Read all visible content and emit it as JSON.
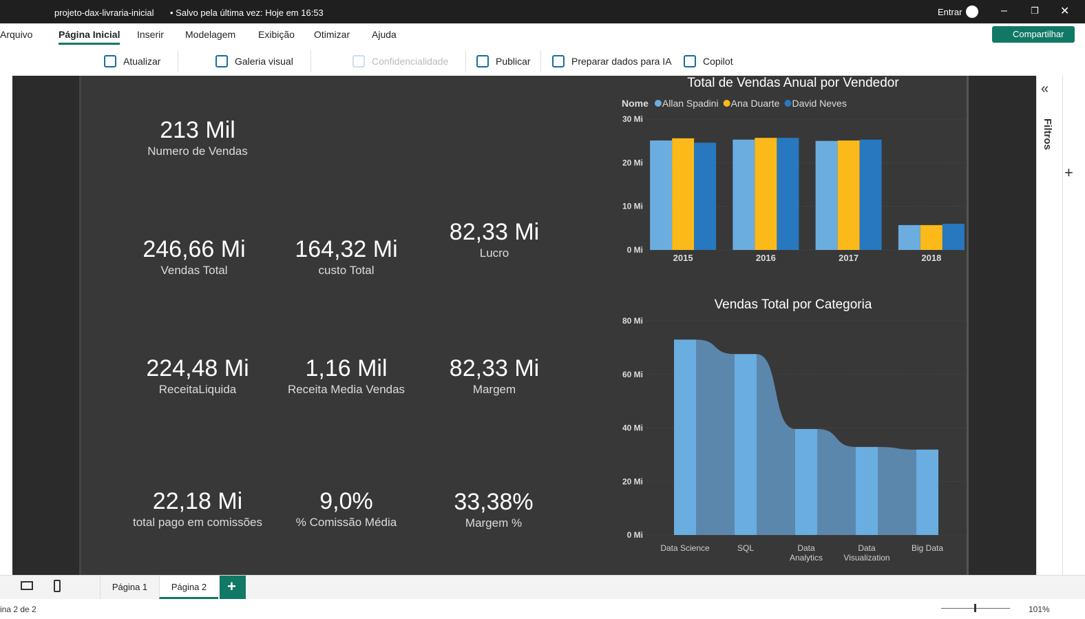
{
  "title_bar": {
    "file": "projeto-dax-livraria-inicial",
    "status": "• Salvo pela última vez: Hoje em 16:53",
    "sign_in": "Entrar"
  },
  "menu": {
    "items": [
      "Arquivo",
      "Página Inicial",
      "Inserir",
      "Modelagem",
      "Exibição",
      "Otimizar",
      "Ajuda"
    ],
    "share": "Compartilhar"
  },
  "ribbon": {
    "items": [
      "Atualizar",
      "Galeria visual",
      "Confidencialidade",
      "Publicar",
      "Preparar dados para IA",
      "Copilot"
    ]
  },
  "cards": [
    {
      "value": "213 Mil",
      "label": "Numero de Vendas"
    },
    {
      "value": "246,66 Mi",
      "label": "Vendas Total"
    },
    {
      "value": "164,32 Mi",
      "label": "custo Total"
    },
    {
      "value": "82,33 Mi",
      "label": "Lucro"
    },
    {
      "value": "224,48 Mi",
      "label": "ReceitaLiquida"
    },
    {
      "value": "1,16 Mil",
      "label": "Receita Media Vendas"
    },
    {
      "value": "82,33 Mi",
      "label": "Margem"
    },
    {
      "value": "22,18 Mi",
      "label": "total pago em comissões"
    },
    {
      "value": "9,0%",
      "label": "% Comissão Média"
    },
    {
      "value": "33,38%",
      "label": "Margem %"
    }
  ],
  "chart_data": [
    {
      "type": "bar",
      "title": "Total de Vendas Anual por Vendedor",
      "legend_title": "Nome",
      "legend": "top-left",
      "categories": [
        "2015",
        "2016",
        "2017",
        "2018"
      ],
      "series": [
        {
          "name": "Allan Spadini",
          "color": "#6cade0",
          "values": [
            25.1,
            25.3,
            25.0,
            5.7
          ]
        },
        {
          "name": "Ana Duarte",
          "color": "#fbb91a",
          "values": [
            25.6,
            25.7,
            25.1,
            5.7
          ]
        },
        {
          "name": "David Neves",
          "color": "#2878c0",
          "values": [
            24.6,
            25.7,
            25.3,
            6.0
          ]
        }
      ],
      "ylim": [
        0,
        30
      ],
      "yticks": [
        {
          "value": 0,
          "label": "0 Mi"
        },
        {
          "value": 10,
          "label": "10 Mi"
        },
        {
          "value": 20,
          "label": "20 Mi"
        },
        {
          "value": 30,
          "label": "30 Mi"
        }
      ],
      "grid": true
    },
    {
      "type": "ribbon",
      "title": "Vendas Total por Categoria",
      "categories": [
        "Data Science",
        "SQL",
        "Data Analytics",
        "Data Visualization",
        "Big Data"
      ],
      "values": [
        73.0,
        67.6,
        39.6,
        32.9,
        31.9
      ],
      "color": "#6aade0",
      "ribbon_color": "#5c87ad",
      "ylim": [
        0,
        80
      ],
      "yticks": [
        {
          "value": 0,
          "label": "0 Mi"
        },
        {
          "value": 20,
          "label": "20 Mi"
        },
        {
          "value": 40,
          "label": "40 Mi"
        },
        {
          "value": 60,
          "label": "60 Mi"
        },
        {
          "value": 80,
          "label": "80 Mi"
        }
      ],
      "grid": true
    }
  ],
  "filters_pane": {
    "label": "Filtros"
  },
  "page_tabs": [
    "Página 1",
    "Página 2"
  ],
  "status_bar": {
    "page": "ina 2 de 2",
    "zoom": "101%"
  }
}
